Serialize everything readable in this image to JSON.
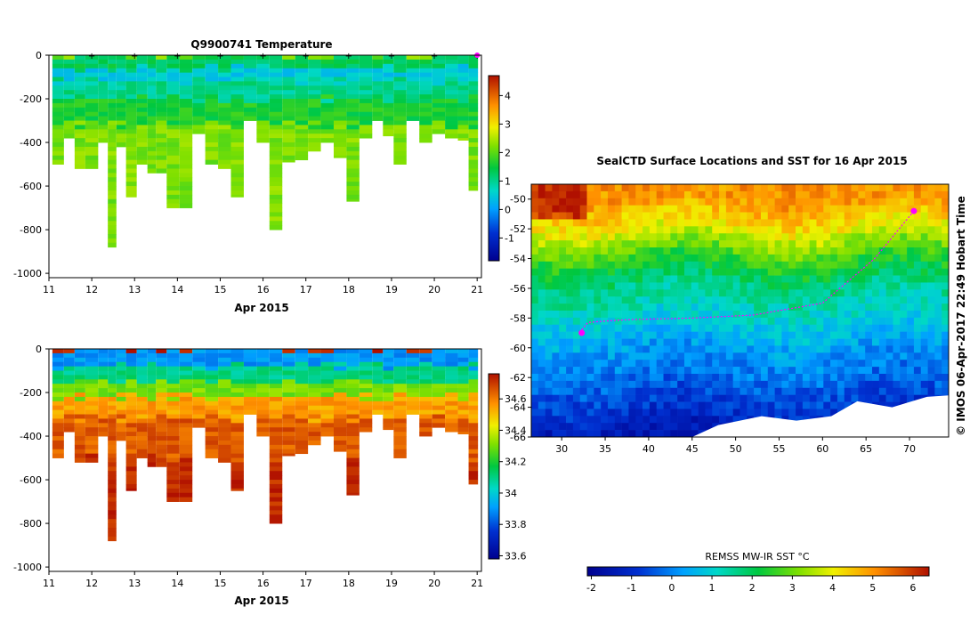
{
  "chart_data": [
    {
      "type": "heatmap",
      "title": "Q9900741  Temperature",
      "xlabel": "Apr 2015",
      "ylabel": "",
      "x_ticks": [
        "11",
        "12",
        "13",
        "14",
        "15",
        "16",
        "17",
        "18",
        "19",
        "20",
        "21"
      ],
      "xlim": [
        11,
        21.1
      ],
      "y_ticks": [
        "0",
        "-200",
        "-400",
        "-600",
        "-800",
        "-1000"
      ],
      "ylim": [
        -1020,
        0
      ],
      "colorbar": {
        "ticks": [
          "-1",
          "0",
          "1",
          "2",
          "3",
          "4"
        ],
        "tick_values": [
          -1,
          0,
          1,
          2,
          3,
          4
        ],
        "range": [
          -1.8,
          4.7
        ]
      },
      "profile_markers_day": [
        12,
        13,
        14,
        15,
        16,
        17,
        18,
        19,
        20,
        21
      ],
      "highlight_marker_day": 21,
      "profiles": [
        {
          "day": 11.2,
          "depth": 500
        },
        {
          "day": 11.5,
          "depth": 380
        },
        {
          "day": 11.7,
          "depth": 520
        },
        {
          "day": 12.0,
          "depth": 520
        },
        {
          "day": 12.3,
          "depth": 400
        },
        {
          "day": 12.45,
          "depth": 880
        },
        {
          "day": 12.7,
          "depth": 420
        },
        {
          "day": 12.9,
          "depth": 650
        },
        {
          "day": 13.2,
          "depth": 500
        },
        {
          "day": 13.4,
          "depth": 540
        },
        {
          "day": 13.6,
          "depth": 540
        },
        {
          "day": 13.9,
          "depth": 700
        },
        {
          "day": 14.2,
          "depth": 700
        },
        {
          "day": 14.5,
          "depth": 360
        },
        {
          "day": 14.8,
          "depth": 500
        },
        {
          "day": 15.1,
          "depth": 520
        },
        {
          "day": 15.4,
          "depth": 650
        },
        {
          "day": 15.7,
          "depth": 300
        },
        {
          "day": 16.0,
          "depth": 400
        },
        {
          "day": 16.3,
          "depth": 800
        },
        {
          "day": 16.6,
          "depth": 490
        },
        {
          "day": 16.9,
          "depth": 480
        },
        {
          "day": 17.2,
          "depth": 440
        },
        {
          "day": 17.5,
          "depth": 400
        },
        {
          "day": 17.8,
          "depth": 470
        },
        {
          "day": 18.1,
          "depth": 670
        },
        {
          "day": 18.4,
          "depth": 380
        },
        {
          "day": 18.7,
          "depth": 300
        },
        {
          "day": 18.9,
          "depth": 370
        },
        {
          "day": 19.2,
          "depth": 500
        },
        {
          "day": 19.5,
          "depth": 300
        },
        {
          "day": 19.8,
          "depth": 400
        },
        {
          "day": 20.1,
          "depth": 360
        },
        {
          "day": 20.4,
          "depth": 380
        },
        {
          "day": 20.7,
          "depth": 390
        },
        {
          "day": 20.9,
          "depth": 620
        }
      ],
      "temperature_layers": [
        {
          "depth_top": 0,
          "depth_bottom": 60,
          "value": 1.3
        },
        {
          "depth_top": 60,
          "depth_bottom": 120,
          "value": 0.5
        },
        {
          "depth_top": 120,
          "depth_bottom": 200,
          "value": 1.0
        },
        {
          "depth_top": 200,
          "depth_bottom": 320,
          "value": 1.6
        },
        {
          "depth_top": 320,
          "depth_bottom": 1000,
          "value": 2.2
        }
      ]
    },
    {
      "type": "heatmap",
      "title": "",
      "xlabel": "Apr 2015",
      "ylabel": "",
      "x_ticks": [
        "11",
        "12",
        "13",
        "14",
        "15",
        "16",
        "17",
        "18",
        "19",
        "20",
        "21"
      ],
      "xlim": [
        11,
        21.1
      ],
      "y_ticks": [
        "0",
        "-200",
        "-400",
        "-600",
        "-800",
        "-1000"
      ],
      "ylim": [
        -1020,
        0
      ],
      "colorbar": {
        "ticks": [
          "33.6",
          "33.8",
          "34",
          "34.2",
          "34.4",
          "34.6"
        ],
        "tick_values": [
          33.6,
          33.8,
          34.0,
          34.2,
          34.4,
          34.6
        ],
        "range": [
          33.58,
          34.76
        ]
      },
      "salinity_layers": [
        {
          "depth_top": 0,
          "depth_bottom": 80,
          "value": 33.9
        },
        {
          "depth_top": 80,
          "depth_bottom": 150,
          "value": 34.1
        },
        {
          "depth_top": 150,
          "depth_bottom": 220,
          "value": 34.3
        },
        {
          "depth_top": 220,
          "depth_bottom": 320,
          "value": 34.55
        },
        {
          "depth_top": 320,
          "depth_bottom": 500,
          "value": 34.65
        },
        {
          "depth_top": 500,
          "depth_bottom": 1000,
          "value": 34.72
        }
      ]
    },
    {
      "type": "heatmap",
      "title": "SealCTD Surface Locations and SST for 16 Apr 2015",
      "xlabel": "",
      "ylabel": "",
      "x_ticks": [
        "30",
        "35",
        "40",
        "45",
        "50",
        "55",
        "60",
        "65",
        "70"
      ],
      "xlim": [
        26.5,
        74.5
      ],
      "y_ticks": [
        "-50",
        "-52",
        "-54",
        "-56",
        "-58",
        "-60",
        "-62",
        "-64",
        "-66"
      ],
      "ylim": [
        -66,
        -49
      ],
      "side_label": "© IMOS 06-Apr-2017 22:49 Hobart Time",
      "colorbar_label": "REMSS MW-IR SST °C",
      "colorbar": {
        "ticks": [
          "-2",
          "-1",
          "0",
          "1",
          "2",
          "3",
          "4",
          "5",
          "6"
        ],
        "tick_values": [
          -2,
          -1,
          0,
          1,
          2,
          3,
          4,
          5,
          6
        ],
        "range": [
          -2.1,
          6.4
        ]
      },
      "sst_bands": [
        {
          "lat": -50,
          "value": 5.0
        },
        {
          "lat": -52,
          "value": 4.0
        },
        {
          "lat": -54,
          "value": 2.5
        },
        {
          "lat": -56,
          "value": 1.6
        },
        {
          "lat": -58,
          "value": 1.0
        },
        {
          "lat": -60,
          "value": 0.3
        },
        {
          "lat": -62,
          "value": -0.2
        },
        {
          "lat": -64,
          "value": -0.8
        },
        {
          "lat": -66,
          "value": -1.5
        }
      ],
      "track": [
        {
          "lon": 70.5,
          "lat": -50.8
        },
        {
          "lon": 66,
          "lat": -54
        },
        {
          "lon": 60,
          "lat": -57
        },
        {
          "lon": 52,
          "lat": -57.8
        },
        {
          "lon": 45,
          "lat": -58
        },
        {
          "lon": 38,
          "lat": -58.1
        },
        {
          "lon": 35,
          "lat": -58.2
        },
        {
          "lon": 33,
          "lat": -58.3
        },
        {
          "lon": 32.3,
          "lat": -58.8
        }
      ],
      "track_end_markers": [
        {
          "lon": 70.5,
          "lat": -50.8
        },
        {
          "lon": 32.3,
          "lat": -59
        }
      ]
    }
  ]
}
